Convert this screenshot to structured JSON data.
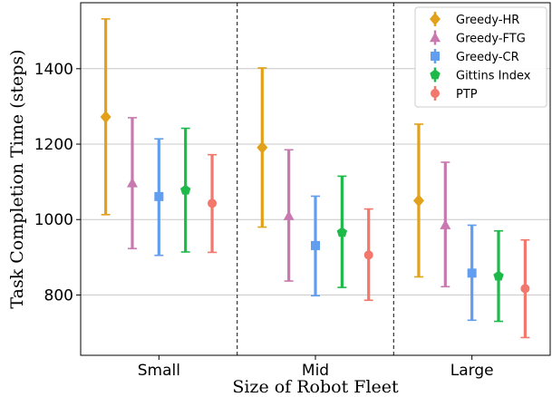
{
  "chart_data": {
    "type": "scatter",
    "subtype": "errorbar",
    "xlabel": "Size of Robot Fleet",
    "ylabel": "Task Completion Time (steps)",
    "categories": [
      "Small",
      "Mid",
      "Large"
    ],
    "ylim": [
      640,
      1575
    ],
    "yticks": [
      800,
      1000,
      1200,
      1400
    ],
    "grid": "horizontal",
    "legend_position": "top-right",
    "series": [
      {
        "name": "Greedy-HR",
        "color": "#E2A11A",
        "marker": "diamond",
        "values": [
          1272,
          1191,
          1050
        ],
        "lower": [
          1013,
          980,
          848
        ],
        "upper": [
          1532,
          1402,
          1253
        ]
      },
      {
        "name": "Greedy-FTG",
        "color": "#C879AF",
        "marker": "triangle",
        "values": [
          1097,
          1010,
          986
        ],
        "lower": [
          923,
          837,
          822
        ],
        "upper": [
          1270,
          1185,
          1152
        ]
      },
      {
        "name": "Greedy-CR",
        "color": "#619EF0",
        "marker": "square",
        "values": [
          1061,
          931,
          858
        ],
        "lower": [
          905,
          798,
          733
        ],
        "upper": [
          1214,
          1062,
          985
        ]
      },
      {
        "name": "Gittins Index",
        "color": "#1DBA4A",
        "marker": "pentagon",
        "values": [
          1078,
          966,
          850
        ],
        "lower": [
          914,
          820,
          730
        ],
        "upper": [
          1242,
          1115,
          970
        ]
      },
      {
        "name": "PTP",
        "color": "#F2776C",
        "marker": "circle",
        "values": [
          1043,
          906,
          817
        ],
        "lower": [
          913,
          786,
          687
        ],
        "upper": [
          1172,
          1028,
          946
        ]
      }
    ]
  }
}
